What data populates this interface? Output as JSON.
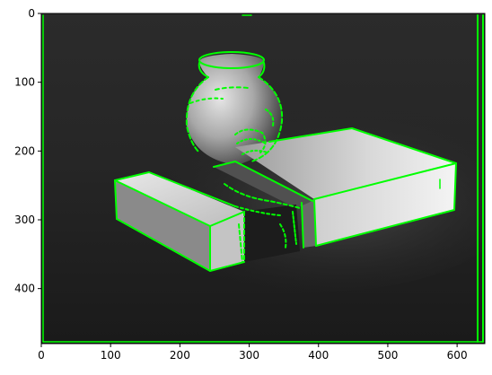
{
  "image_panel": {
    "description_colors": {
      "edge": "#00ff00",
      "background": "#1e1e1e"
    },
    "xlim": [
      0,
      640
    ],
    "ylim": [
      480,
      0
    ],
    "x_ticks": [
      {
        "value": 0,
        "label": "0"
      },
      {
        "value": 100,
        "label": "100"
      },
      {
        "value": 200,
        "label": "200"
      },
      {
        "value": 300,
        "label": "300"
      },
      {
        "value": 400,
        "label": "400"
      },
      {
        "value": 500,
        "label": "500"
      },
      {
        "value": 600,
        "label": "600"
      }
    ],
    "y_ticks": [
      {
        "value": 0,
        "label": "0"
      },
      {
        "value": 100,
        "label": "100"
      },
      {
        "value": 200,
        "label": "200"
      },
      {
        "value": 300,
        "label": "300"
      },
      {
        "value": 400,
        "label": "400"
      }
    ]
  }
}
